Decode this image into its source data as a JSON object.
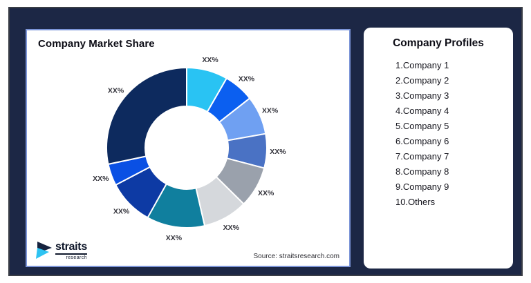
{
  "frame": {
    "bg": "#1C2745",
    "border": "#3A3E46"
  },
  "chart_card": {
    "title": "Company Market Share",
    "source": "Source: straitsresearch.com",
    "border_color": "#7C95D8"
  },
  "profiles": {
    "title": "Company Profiles",
    "items": [
      "1.Company 1",
      "2.Company 2",
      "3.Company 3",
      "4.Company 4",
      "5.Company 5",
      "6.Company 6",
      "7.Company 7",
      "8.Company 8",
      "9.Company 9",
      "10.Others"
    ]
  },
  "logo": {
    "name": "straits",
    "sub": "research",
    "icon_navy": "#16233F",
    "icon_cyan": "#2EC3F2"
  },
  "chart_data": {
    "type": "pie",
    "subtype": "donut",
    "title": "Company Market Share",
    "xlabel": "",
    "ylabel": "",
    "legend_position": "none",
    "grid": false,
    "note": "All slice data labels show the placeholder XX%; values are percentages estimated from arc angles, clockwise from 12 o'clock",
    "categories": [
      "Company 1",
      "Company 2",
      "Company 3",
      "Company 4",
      "Company 5",
      "Company 6",
      "Company 7",
      "Company 8",
      "Company 9",
      "Others"
    ],
    "segments": [
      {
        "name": "Company 1",
        "label": "XX%",
        "value": 8.3,
        "color": "#29C3F3"
      },
      {
        "name": "Company 2",
        "label": "XX%",
        "value": 6.1,
        "color": "#0B5FF0"
      },
      {
        "name": "Company 3",
        "label": "XX%",
        "value": 7.8,
        "color": "#6FA0F2"
      },
      {
        "name": "Company 4",
        "label": "XX%",
        "value": 6.9,
        "color": "#4A72C4"
      },
      {
        "name": "Company 5",
        "label": "XX%",
        "value": 8.3,
        "color": "#9AA1AC"
      },
      {
        "name": "Company 6",
        "label": "XX%",
        "value": 9.0,
        "color": "#D5D8DC"
      },
      {
        "name": "Company 7",
        "label": "XX%",
        "value": 11.7,
        "color": "#107F9E"
      },
      {
        "name": "Company 8",
        "label": "XX%",
        "value": 9.2,
        "color": "#0D3AA4"
      },
      {
        "name": "Company 9",
        "label": "XX%",
        "value": 4.4,
        "color": "#0A50E4"
      },
      {
        "name": "Others",
        "label": "XX%",
        "value": 28.3,
        "color": "#0D2A5E"
      }
    ]
  }
}
